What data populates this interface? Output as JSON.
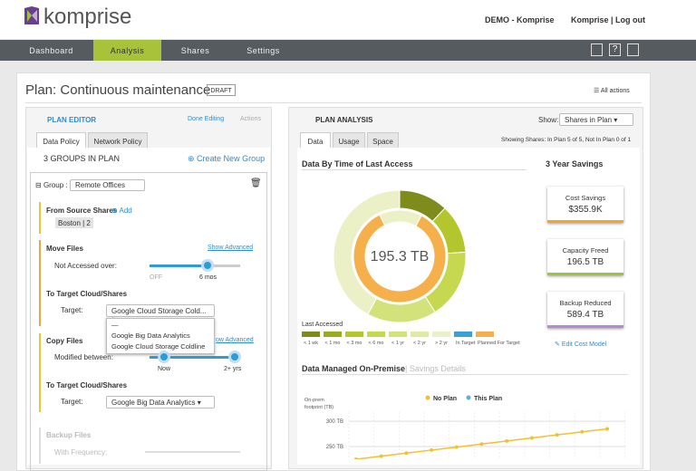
{
  "header": {
    "logo": "komprise",
    "demo": "DEMO - Komprise",
    "user": "Komprise | Log out"
  },
  "nav": {
    "items": [
      "Dashboard",
      "Analysis",
      "Shares",
      "Settings"
    ],
    "active": 1
  },
  "plan": {
    "title": "Plan: Continuous maintenance",
    "status": "DRAFT",
    "all_actions": "All actions"
  },
  "editor": {
    "title": "PLAN EDITOR",
    "done": "Done Editing",
    "actions": "Actions",
    "tabs": [
      "Data Policy",
      "Network Policy"
    ],
    "groups": "3 GROUPS IN PLAN",
    "create": "Create New Group",
    "group_label": "Group",
    "group_name": "Remote Offices",
    "from_source": "From Source Shares",
    "add": "Add",
    "share": "Boston | 2",
    "move_files": "Move Files",
    "show_advanced": "Show Advanced",
    "not_accessed": "Not Accessed over:",
    "slider_off": "OFF",
    "slider_value": "6 mos",
    "to_target": "To Target Cloud/Shares",
    "target": "Target:",
    "target_value": "Google Cloud Storage Cold...",
    "dropdown": [
      "—",
      "Google Big Data Analytics",
      "Google Cloud Storage Coldline"
    ],
    "copy_files": "Copy Files",
    "show_advanced_2": "ow Advanced",
    "modified": "Modified between:",
    "now": "Now",
    "later": "2+ yrs",
    "to_target_2": "To Target Cloud/Shares",
    "target_2": "Target:",
    "target_value_2": "Google Big Data Analytics",
    "backup": "Backup Files",
    "frequency": "With Frequency:"
  },
  "analysis": {
    "title": "PLAN ANALYSIS",
    "show": "Show:",
    "show_value": "Shares in Plan",
    "tabs": [
      "Data",
      "Usage",
      "Space"
    ],
    "showing": "Showing Shares: In Plan 5 of 5, Not In Plan 0 of 1",
    "donut_title": "Data By Time of Last Access",
    "savings_title": "3 Year Savings",
    "cards": [
      {
        "label": "Cost Savings",
        "value": "$355.9K"
      },
      {
        "label": "Capacity Freed",
        "value": "196.5 TB"
      },
      {
        "label": "Backup Reduced",
        "value": "589.4 TB"
      }
    ],
    "edit_cost": "Edit Cost Model"
  },
  "donut": {
    "type": "pie",
    "center_label": "195.3 TB",
    "legend_title": "Last Accessed",
    "categories": [
      "< 1 wk",
      "< 1 mo",
      "< 3 mo",
      "< 6 mo",
      "< 1 yr",
      "< 2 yr",
      "> 2 yr",
      "In Target",
      "Planned For Target"
    ],
    "colors": [
      "#7f8c1c",
      "#9aab1f",
      "#b3c62c",
      "#c6d84f",
      "#d4e27c",
      "#e1eaa3",
      "#ecf0c6",
      "#3aa0d8",
      "#f5b04b"
    ],
    "outer": [
      12,
      0,
      12,
      17,
      17,
      0,
      42,
      0,
      0
    ],
    "inner": [
      0,
      0,
      0,
      0,
      0,
      0,
      15,
      0,
      85
    ]
  },
  "line_chart": {
    "type": "line",
    "title": "Data Managed On-Premise",
    "link": "Savings Details",
    "y_label": [
      "On-prem",
      "footprint (TB)"
    ],
    "ylim": [
      225,
      318
    ],
    "yticks": [
      {
        "value": 300,
        "label": "300 TB"
      },
      {
        "value": 250,
        "label": "250 TB"
      }
    ],
    "series": [
      {
        "name": "No Plan",
        "color": "#f2c12e",
        "values": [
          225,
          231,
          237,
          243,
          249,
          255,
          261,
          267,
          273,
          279,
          285
        ]
      }
    ],
    "legend_extra": {
      "name": "This Plan",
      "color": "#5aaee0"
    }
  }
}
